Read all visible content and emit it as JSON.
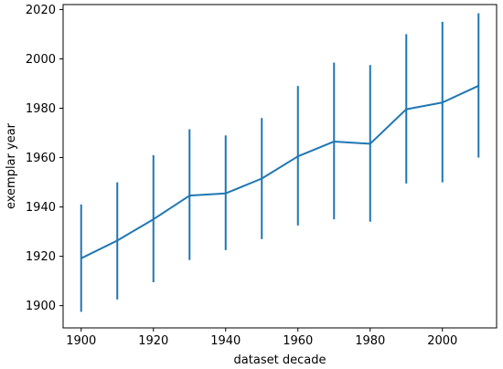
{
  "chart_data": {
    "type": "line",
    "title": "",
    "xlabel": "dataset decade",
    "ylabel": "exemplar year",
    "xlim": [
      1895,
      2015
    ],
    "ylim": [
      1891,
      2022
    ],
    "grid": false,
    "x_ticks": [
      1900,
      1920,
      1940,
      1960,
      1980,
      2000
    ],
    "y_ticks": [
      1900,
      1920,
      1940,
      1960,
      1980,
      2000,
      2020
    ],
    "series": [
      {
        "color": "#1f77b4",
        "x": [
          1900,
          1910,
          1920,
          1930,
          1940,
          1950,
          1960,
          1970,
          1980,
          1990,
          2000,
          2010
        ],
        "y": [
          1919.2,
          1926.4,
          1935.0,
          1944.6,
          1945.5,
          1951.5,
          1960.5,
          1966.5,
          1965.6,
          1979.6,
          1982.3,
          1989.1
        ],
        "lower": [
          1897.5,
          1902.5,
          1909.5,
          1918.5,
          1922.5,
          1927.0,
          1932.5,
          1935.0,
          1934.0,
          1949.5,
          1950.0,
          1960.0
        ],
        "upper": [
          1941.0,
          1950.0,
          1961.0,
          1971.5,
          1969.0,
          1976.0,
          1989.0,
          1998.5,
          1997.5,
          2010.0,
          2015.0,
          2018.5
        ]
      }
    ]
  }
}
